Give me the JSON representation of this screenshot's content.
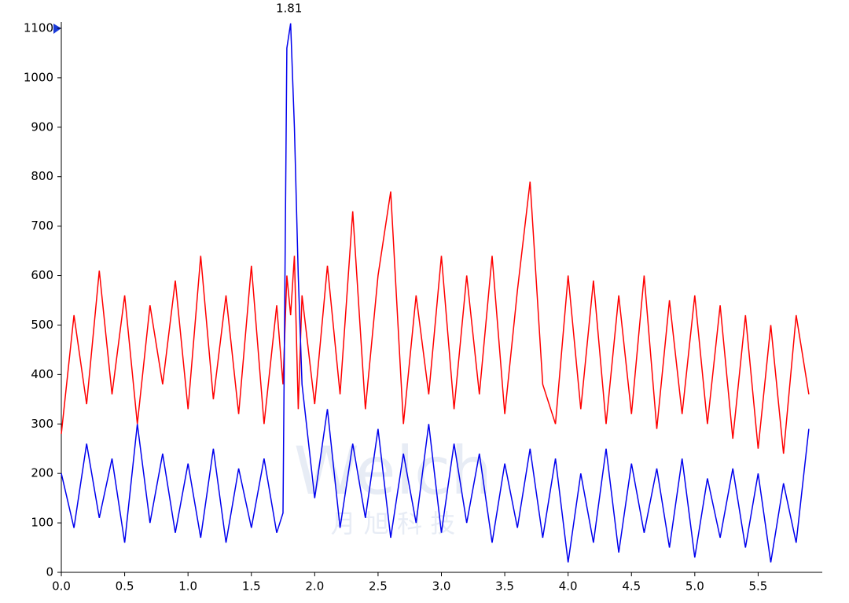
{
  "chart_data": {
    "type": "line",
    "annotation": "1.81",
    "watermark": [
      "Welch",
      "月 旭 科 技"
    ],
    "x": [
      0,
      0.1,
      0.2,
      0.3,
      0.4,
      0.5,
      0.6,
      0.7,
      0.8,
      0.9,
      1.0,
      1.1,
      1.2,
      1.3,
      1.4,
      1.5,
      1.6,
      1.7,
      1.75,
      1.78,
      1.81,
      1.84,
      1.87,
      1.9,
      2.0,
      2.1,
      2.2,
      2.3,
      2.4,
      2.5,
      2.6,
      2.7,
      2.8,
      2.9,
      3.0,
      3.1,
      3.2,
      3.3,
      3.4,
      3.5,
      3.6,
      3.7,
      3.8,
      3.9,
      4.0,
      4.1,
      4.2,
      4.3,
      4.4,
      4.5,
      4.6,
      4.7,
      4.8,
      4.9,
      5.0,
      5.1,
      5.2,
      5.3,
      5.4,
      5.5,
      5.6,
      5.7,
      5.8,
      5.9
    ],
    "series": [
      {
        "color": "#ff0000",
        "values": [
          280,
          520,
          340,
          610,
          360,
          560,
          300,
          540,
          380,
          590,
          330,
          640,
          350,
          560,
          320,
          620,
          300,
          540,
          380,
          600,
          520,
          640,
          330,
          560,
          340,
          620,
          360,
          730,
          330,
          600,
          770,
          300,
          560,
          360,
          640,
          330,
          600,
          360,
          640,
          320,
          570,
          790,
          380,
          300,
          600,
          330,
          590,
          300,
          560,
          320,
          600,
          290,
          550,
          320,
          560,
          300,
          540,
          270,
          520,
          250,
          500,
          240,
          520,
          360
        ]
      },
      {
        "color": "#0000ee",
        "values": [
          200,
          90,
          260,
          110,
          230,
          60,
          300,
          100,
          240,
          80,
          220,
          70,
          250,
          60,
          210,
          90,
          230,
          80,
          120,
          1060,
          1110,
          900,
          600,
          380,
          150,
          330,
          90,
          260,
          110,
          290,
          70,
          240,
          100,
          300,
          80,
          260,
          100,
          240,
          60,
          220,
          90,
          250,
          70,
          230,
          20,
          200,
          60,
          250,
          40,
          220,
          80,
          210,
          50,
          230,
          30,
          190,
          70,
          210,
          50,
          200,
          20,
          180,
          60,
          290
        ]
      }
    ],
    "xlim": [
      0,
      6
    ],
    "xticks": [
      {
        "value": 0,
        "label": "0.0"
      },
      0.5,
      {
        "value": 1,
        "label": "1.0"
      },
      1.5,
      {
        "value": 2,
        "label": "2.0"
      },
      2.5,
      {
        "value": 3,
        "label": "3.0"
      },
      3.5,
      {
        "value": 4,
        "label": "4.0"
      },
      4.5,
      {
        "value": 5,
        "label": "5.0"
      },
      5.5
    ],
    "ylim": [
      0,
      1100
    ],
    "yticks": [
      0,
      100,
      200,
      300,
      400,
      500,
      600,
      700,
      800,
      900,
      1000,
      1100
    ]
  }
}
